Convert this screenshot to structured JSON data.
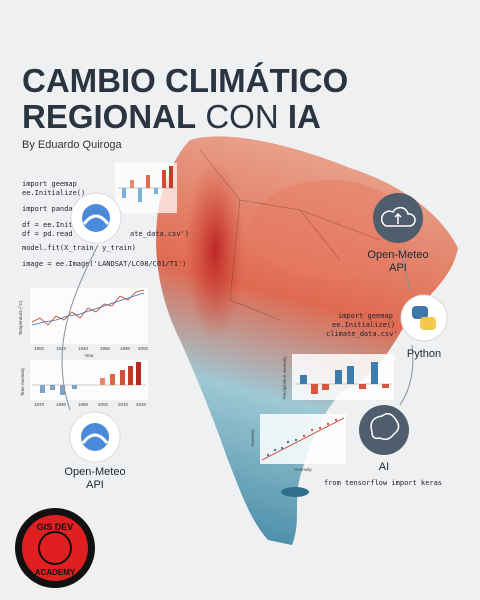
{
  "header": {
    "title_line1": "CAMBIO CLIMÁTICO",
    "title_line2_a": "REGIONAL",
    "title_line2_b": "CON",
    "title_line2_c": "IA",
    "author": "By Eduardo Quiroga"
  },
  "code_left": [
    "import geemap",
    "ee.Initialize()",
    "import pandas",
    "df = ee.Initi",
    "df = pd.read",
    "ate_data.csv')",
    "model.fit(X_train, y_train)",
    "image = ee.Image('LANDSAT/LC08/C01/T1')"
  ],
  "code_right": [
    "import geemap",
    "ee.Initialize()",
    "climate_data.csv'"
  ],
  "code_bottom": "from tensorflow import keras",
  "nodes": [
    {
      "label_1": "Open-Meteo",
      "label_2": "API"
    },
    {
      "label_1": "Python"
    },
    {
      "label_1": "AI"
    },
    {
      "label_1": "Open-Meteo",
      "label_2": "API"
    }
  ],
  "charts": {
    "temp_ylabel": "Temperature (°C)",
    "temp_xlabel": "Year",
    "temp_xticks": [
      "1900",
      "1920",
      "1940",
      "1960",
      "1980",
      "2000"
    ],
    "anom_ylabel": "Time Anomaly",
    "anom_xticks": [
      "1970",
      "1980",
      "1990",
      "2000",
      "2010",
      "2020"
    ],
    "precip_ylabel": "Precipitation anomaly",
    "scatter_ylabel": "Anomaly",
    "scatter_xlabel": "Anomaly"
  },
  "badge": {
    "top": "GIS DEV",
    "bottom": "ACADEMY"
  }
}
